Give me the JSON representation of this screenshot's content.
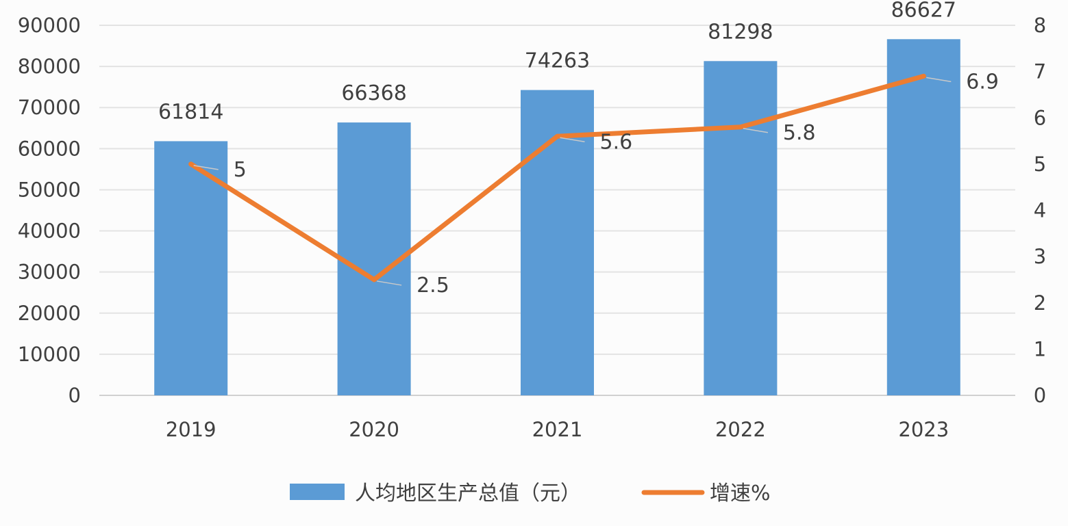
{
  "chart_data": {
    "type": "bar",
    "categories": [
      "2019",
      "2020",
      "2021",
      "2022",
      "2023"
    ],
    "series": [
      {
        "name": "人均地区生产总值（元）",
        "type": "bar",
        "axis": "left",
        "color": "#5b9bd5",
        "values": [
          61814,
          66368,
          74263,
          81298,
          86627
        ]
      },
      {
        "name": "增速%",
        "type": "line",
        "axis": "right",
        "color": "#ed7d31",
        "values": [
          5,
          2.5,
          5.6,
          5.8,
          6.9
        ]
      }
    ],
    "left_axis": {
      "ylim": [
        0,
        90000
      ],
      "ticks": [
        "0",
        "10000",
        "20000",
        "30000",
        "40000",
        "50000",
        "60000",
        "70000",
        "80000",
        "90000"
      ]
    },
    "right_axis": {
      "ylim": [
        0,
        8
      ],
      "ticks": [
        "0",
        "1",
        "2",
        "3",
        "4",
        "5",
        "6",
        "7",
        "8"
      ]
    },
    "bar_labels": [
      "61814",
      "66368",
      "74263",
      "81298",
      "86627"
    ],
    "line_labels": [
      "5",
      "2.5",
      "5.6",
      "5.8",
      "6.9"
    ],
    "grid": true,
    "legend_position": "bottom"
  }
}
